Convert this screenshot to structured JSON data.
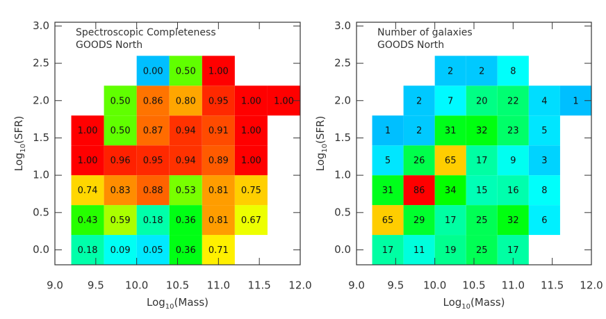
{
  "chart_data": [
    {
      "type": "heatmap",
      "annotations": [
        "Spectroscopic Completeness",
        "GOODS North"
      ],
      "xlabel": [
        "Log",
        "10",
        "(Mass)"
      ],
      "ylabel": [
        "Log",
        "10",
        "(SFR)"
      ],
      "xbins": [
        9.2,
        9.6,
        10.0,
        10.4,
        10.8,
        11.2,
        11.6,
        12.0
      ],
      "ybins": [
        -0.2,
        0.2,
        0.6,
        1.0,
        1.4,
        1.8,
        2.2,
        2.6
      ],
      "values": [
        [
          0.18,
          0.09,
          0.05,
          0.36,
          0.71,
          null,
          null
        ],
        [
          0.43,
          0.59,
          0.18,
          0.36,
          0.81,
          0.67,
          null
        ],
        [
          0.74,
          0.83,
          0.88,
          0.53,
          0.81,
          0.75,
          null
        ],
        [
          1.0,
          0.96,
          0.95,
          0.94,
          0.89,
          1.0,
          null
        ],
        [
          1.0,
          0.5,
          0.87,
          0.94,
          0.91,
          1.0,
          null
        ],
        [
          null,
          0.5,
          0.86,
          0.8,
          0.95,
          1.0,
          1.0
        ],
        [
          null,
          null,
          0.0,
          0.5,
          1.0,
          null,
          null
        ]
      ],
      "value_labels": [
        [
          "0.18",
          "0.09",
          "0.05",
          "0.36",
          "0.71",
          null,
          null
        ],
        [
          "0.43",
          "0.59",
          "0.18",
          "0.36",
          "0.81",
          "0.67",
          null
        ],
        [
          "0.74",
          "0.83",
          "0.88",
          "0.53",
          "0.81",
          "0.75",
          null
        ],
        [
          "1.00",
          "0.96",
          "0.95",
          "0.94",
          "0.89",
          "1.00",
          null
        ],
        [
          "1.00",
          "0.50",
          "0.87",
          "0.94",
          "0.91",
          "1.00",
          null
        ],
        [
          null,
          "0.50",
          "0.86",
          "0.80",
          "0.95",
          "1.00",
          "1.00"
        ],
        [
          null,
          null,
          "0.00",
          "0.50",
          "1.00",
          null,
          null
        ]
      ],
      "zlim": [
        0,
        1
      ],
      "hue_range": [
        195,
        0
      ],
      "xlim": [
        9.0,
        12.0
      ],
      "ylim": [
        -0.2,
        3.05
      ],
      "xticks": [
        {
          "value": 9,
          "label": "9.0"
        },
        9.5,
        {
          "value": 10,
          "label": "10.0"
        },
        10.5,
        {
          "value": 11,
          "label": "11.0"
        },
        11.5,
        {
          "value": 12,
          "label": "12.0"
        }
      ],
      "yticks": [
        {
          "value": 0,
          "label": "0.0"
        },
        0.5,
        {
          "value": 1,
          "label": "1.0"
        },
        1.5,
        {
          "value": 2,
          "label": "2.0"
        },
        2.5,
        {
          "value": 3,
          "label": "3.0"
        }
      ]
    },
    {
      "type": "heatmap",
      "annotations": [
        "Number of galaxies",
        "GOODS North"
      ],
      "xlabel": [
        "Log",
        "10",
        "(Mass)"
      ],
      "ylabel": [
        "Log",
        "10",
        "(SFR)"
      ],
      "xbins": [
        9.2,
        9.6,
        10.0,
        10.4,
        10.8,
        11.2,
        11.6,
        12.0
      ],
      "ybins": [
        -0.2,
        0.2,
        0.6,
        1.0,
        1.4,
        1.8,
        2.2,
        2.6
      ],
      "values": [
        [
          17,
          11,
          19,
          25,
          17,
          null,
          null
        ],
        [
          65,
          29,
          17,
          25,
          32,
          6,
          null
        ],
        [
          31,
          86,
          34,
          15,
          16,
          8,
          null
        ],
        [
          5,
          26,
          65,
          17,
          9,
          3,
          null
        ],
        [
          1,
          2,
          31,
          32,
          23,
          5,
          null
        ],
        [
          null,
          2,
          7,
          20,
          22,
          4,
          1
        ],
        [
          null,
          null,
          2,
          2,
          8,
          null,
          null
        ]
      ],
      "zlim": [
        1,
        86
      ],
      "hue_range": [
        195,
        0
      ],
      "xlim": [
        9.0,
        12.0
      ],
      "ylim": [
        -0.2,
        3.05
      ],
      "xticks": [
        {
          "value": 9,
          "label": "9.0"
        },
        9.5,
        {
          "value": 10,
          "label": "10.0"
        },
        10.5,
        {
          "value": 11,
          "label": "11.0"
        },
        11.5,
        {
          "value": 12,
          "label": "12.0"
        }
      ],
      "yticks": [
        {
          "value": 0,
          "label": "0.0"
        },
        0.5,
        {
          "value": 1,
          "label": "1.0"
        },
        1.5,
        {
          "value": 2,
          "label": "2.0"
        },
        2.5,
        {
          "value": 3,
          "label": "3.0"
        }
      ]
    }
  ]
}
